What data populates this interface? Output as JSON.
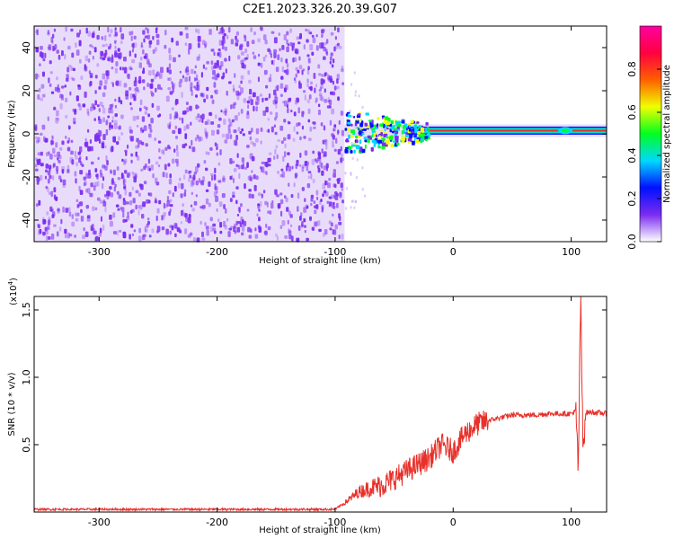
{
  "title": "C2E1.2023.326.20.39.G07",
  "colors": {
    "spectrogram_low": "#7b2cf0",
    "snr_line": "#e8302a",
    "ridge": "#e8302a"
  },
  "chart_data": [
    {
      "type": "heatmap",
      "xlabel": "Height of straight line (km)",
      "ylabel": "Frequency (Hz)",
      "xlim": [
        -355,
        130
      ],
      "ylim": [
        -50,
        50
      ],
      "xticks": [
        "-300",
        "-200",
        "-100",
        "0",
        "100"
      ],
      "xtick_values": [
        -300,
        -200,
        -100,
        0,
        100
      ],
      "yticks": [
        "40",
        "20",
        "0",
        "-20",
        "-40"
      ],
      "ytick_values": [
        40,
        20,
        0,
        -20,
        -40
      ],
      "noise_region_x": [
        -355,
        -92
      ],
      "signal_frequency_hz": 1.5,
      "colorbar": {
        "label": "Normalized spectral amplitude",
        "range": [
          0,
          1
        ],
        "ticks": [
          "0.0",
          "0.2",
          "0.4",
          "0.6",
          "0.8"
        ],
        "tick_values": [
          0.0,
          0.2,
          0.4,
          0.6,
          0.8
        ],
        "colormap": [
          "#ffffff",
          "#7b2cf0",
          "#0010ff",
          "#00d8ff",
          "#00ff20",
          "#f0ff00",
          "#ff6000",
          "#ff0040",
          "#ff00a0"
        ]
      }
    },
    {
      "type": "line",
      "xlabel": "Height of straight line (km)",
      "ylabel": "SNR (10 * v/v)",
      "scale_label": "(x10",
      "scale_exp": "4",
      "scale_close": ")",
      "xlim": [
        -355,
        130
      ],
      "ylim": [
        0,
        1.6
      ],
      "xticks": [
        "-300",
        "-200",
        "-100",
        "0",
        "100"
      ],
      "xtick_values": [
        -300,
        -200,
        -100,
        0,
        100
      ],
      "yticks": [
        "1.5",
        "1.0",
        "0.5"
      ],
      "ytick_values": [
        1.5,
        1.0,
        0.5
      ],
      "series": [
        {
          "x": [
            -355,
            -300,
            -250,
            -200,
            -150,
            -100,
            -90,
            -80,
            -70,
            -60,
            -50,
            -40,
            -30,
            -20,
            -10,
            0,
            10,
            20,
            30,
            40,
            50,
            60,
            70,
            80,
            90,
            100,
            104,
            106,
            108,
            110,
            112,
            120,
            130
          ],
          "values": [
            0.02,
            0.02,
            0.02,
            0.02,
            0.02,
            0.02,
            0.08,
            0.15,
            0.18,
            0.2,
            0.25,
            0.3,
            0.35,
            0.4,
            0.5,
            0.45,
            0.58,
            0.65,
            0.68,
            0.7,
            0.72,
            0.72,
            0.72,
            0.73,
            0.73,
            0.73,
            0.75,
            0.3,
            1.6,
            0.45,
            0.74,
            0.74,
            0.73
          ]
        }
      ]
    }
  ]
}
